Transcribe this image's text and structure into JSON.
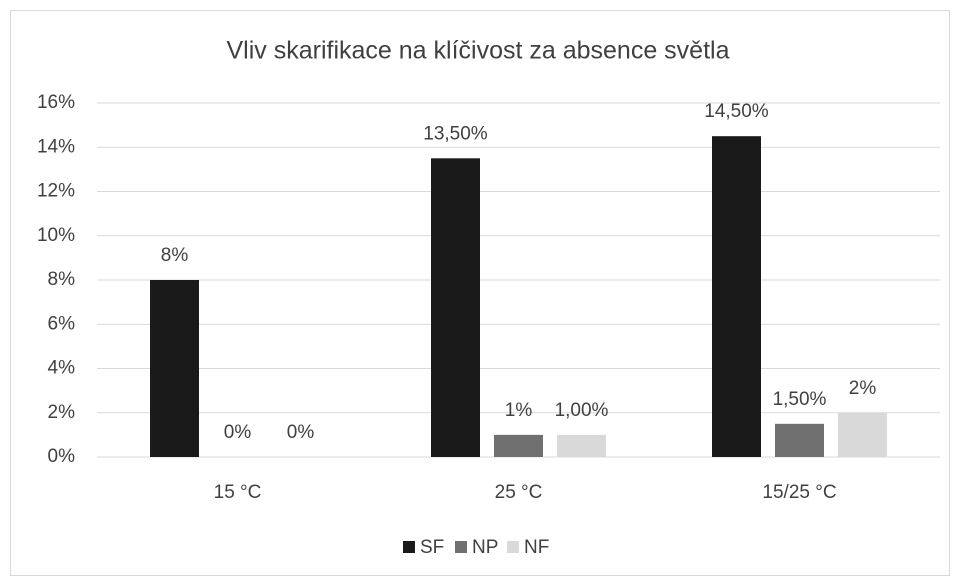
{
  "chart_data": {
    "type": "bar",
    "title": "Vliv skarifikace na klíčivost za absence světla",
    "categories": [
      "15 °C",
      "25 °C",
      "15/25 °C"
    ],
    "series": [
      {
        "name": "SF",
        "color": "#1a1a1a",
        "values": [
          8,
          13.5,
          14.5
        ],
        "value_labels": [
          "8%",
          "13,50%",
          "14,50%"
        ]
      },
      {
        "name": "NP",
        "color": "#707070",
        "values": [
          0,
          1,
          1.5
        ],
        "value_labels": [
          "0%",
          "1%",
          "1,50%"
        ]
      },
      {
        "name": "NF",
        "color": "#d9d9d9",
        "values": [
          0,
          1,
          2
        ],
        "value_labels": [
          "0%",
          "1,00%",
          "2%"
        ]
      }
    ],
    "ylim": [
      0,
      16
    ],
    "yticks": [
      {
        "value": 0,
        "label": "0%"
      },
      {
        "value": 2,
        "label": "2%"
      },
      {
        "value": 4,
        "label": "4%"
      },
      {
        "value": 6,
        "label": "6%"
      },
      {
        "value": 8,
        "label": "8%"
      },
      {
        "value": 10,
        "label": "10%"
      },
      {
        "value": 12,
        "label": "12%"
      },
      {
        "value": 14,
        "label": "14%"
      },
      {
        "value": 16,
        "label": "16%"
      }
    ],
    "grid": true,
    "legend": "bottom"
  }
}
